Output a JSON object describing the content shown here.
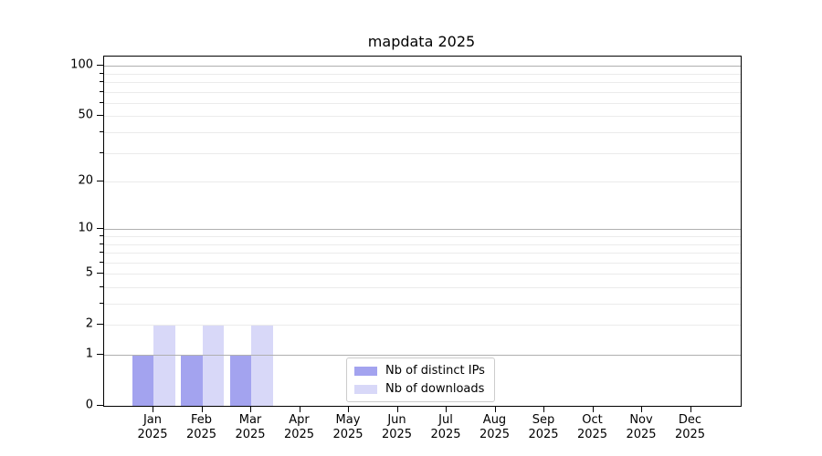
{
  "title": "mapdata 2025",
  "chart_data": {
    "type": "bar",
    "title": "mapdata 2025",
    "categories": [
      "Jan",
      "Feb",
      "Mar",
      "Apr",
      "May",
      "Jun",
      "Jul",
      "Aug",
      "Sep",
      "Oct",
      "Nov",
      "Dec"
    ],
    "category_year": "2025",
    "series": [
      {
        "name": "Nb of distinct IPs",
        "color": "#a3a3ef",
        "values": [
          1,
          1,
          1,
          0,
          0,
          0,
          0,
          0,
          0,
          0,
          0,
          0
        ]
      },
      {
        "name": "Nb of downloads",
        "color": "#d8d8f8",
        "values": [
          2,
          2,
          2,
          0,
          0,
          0,
          0,
          0,
          0,
          0,
          0,
          0
        ]
      }
    ],
    "xlabel": "",
    "ylabel": "",
    "yscale": "log1p",
    "ylim": [
      0,
      114
    ],
    "y_labeled_ticks": [
      0,
      1,
      2,
      5,
      10,
      20,
      50,
      100
    ],
    "y_major_grid": [
      1,
      10,
      100
    ],
    "y_minor_grid": [
      2,
      3,
      4,
      5,
      6,
      7,
      8,
      9,
      20,
      30,
      40,
      50,
      60,
      70,
      80,
      90
    ],
    "y_minor_ticks": [
      3,
      4,
      6,
      7,
      8,
      9,
      30,
      40,
      60,
      70,
      80,
      90
    ],
    "grid": true,
    "legend_position": "lower center"
  },
  "colors": {
    "background": "#ffffff",
    "spine": "#000000",
    "major_grid": "#b0b0b0",
    "minor_grid": "#ebebeb",
    "legend_border": "#cccccc",
    "text": "#000000"
  }
}
